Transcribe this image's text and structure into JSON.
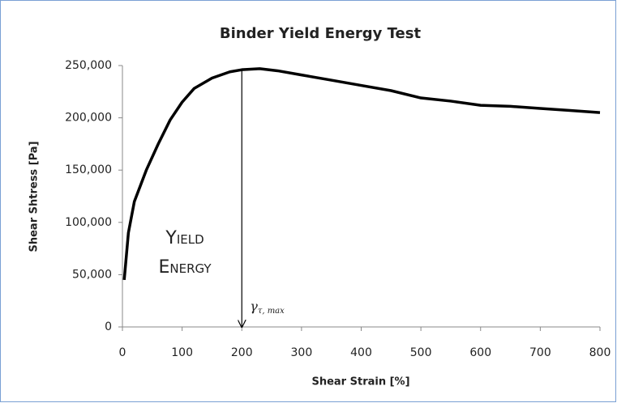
{
  "chart_data": {
    "type": "line",
    "title": "Binder Yield Energy Test",
    "x_label": "Shear Strain [%]",
    "y_label": "Shear Shtress [Pa]",
    "x": [
      3,
      10,
      20,
      40,
      60,
      80,
      100,
      120,
      150,
      180,
      200,
      230,
      260,
      300,
      350,
      400,
      450,
      500,
      550,
      600,
      650,
      700,
      750,
      800
    ],
    "series": [
      {
        "name": "Shear Stress",
        "color": "#000000",
        "values": [
          45000,
          90000,
          120000,
          150000,
          175000,
          198000,
          215000,
          228000,
          238000,
          244000,
          246000,
          247000,
          245000,
          241000,
          236000,
          231000,
          226000,
          219000,
          216000,
          212000,
          211000,
          209000,
          207000,
          205000
        ]
      }
    ],
    "xlim": [
      0,
      800
    ],
    "xticks": [
      0,
      100,
      200,
      300,
      400,
      500,
      600,
      700,
      800
    ],
    "ylim": [
      0,
      250000
    ],
    "yticks": [
      0,
      {
        "value": 50000,
        "label": "50,000"
      },
      {
        "value": 100000,
        "label": "100,000"
      },
      {
        "value": 150000,
        "label": "150,000"
      },
      {
        "value": 200000,
        "label": "200,000"
      },
      {
        "value": 250000,
        "label": "250,000"
      }
    ],
    "grid": false,
    "annotations": {
      "yield_energy": [
        "Yield",
        "Energy"
      ],
      "arrow_x": 200,
      "gamma_symbol": "γ",
      "gamma_subscript": "τ, max"
    }
  }
}
